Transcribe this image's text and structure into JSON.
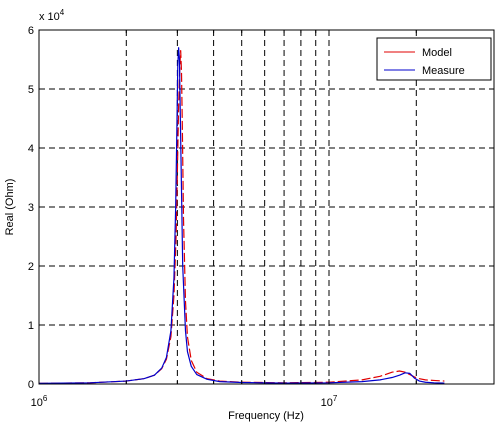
{
  "chart_data": {
    "type": "line",
    "xlabel": "Frequency (Hz)",
    "ylabel": "Real (Ohm)",
    "y_multiplier_label": "x 10",
    "y_multiplier_exp": "4",
    "x_scale": "log",
    "xlim": [
      1000000,
      25000000
    ],
    "ylim": [
      0,
      60000
    ],
    "grid": true,
    "legend_position": "top-right",
    "x_ticks": [
      {
        "base": "10",
        "exp": "6",
        "value": 1000000
      },
      {
        "base": "10",
        "exp": "7",
        "value": 10000000
      }
    ],
    "y_ticks": [
      {
        "label": "0",
        "value": 0
      },
      {
        "label": "1",
        "value": 10000
      },
      {
        "label": "2",
        "value": 20000
      },
      {
        "label": "3",
        "value": 30000
      },
      {
        "label": "4",
        "value": 40000
      },
      {
        "label": "5",
        "value": 50000
      },
      {
        "label": "6",
        "value": 60000
      }
    ],
    "series": [
      {
        "name": "Model",
        "color": "#e00000",
        "x": [
          1000000,
          1500000,
          2000000,
          2300000,
          2500000,
          2650000,
          2750000,
          2850000,
          2920000,
          2970000,
          3000000,
          3030000,
          3060000,
          3080000,
          3100000,
          3120000,
          3150000,
          3200000,
          3250000,
          3350000,
          3500000,
          3800000,
          4200000,
          5000000,
          7000000,
          10000000,
          13000000,
          15000000,
          16500000,
          17500000,
          18300000,
          19000000,
          19700000,
          20500000,
          21500000,
          23000000,
          25000000
        ],
        "y": [
          100,
          200,
          500,
          900,
          1500,
          2600,
          4200,
          8000,
          15000,
          25000,
          36000,
          47000,
          54000,
          56500,
          53000,
          44000,
          28000,
          14000,
          8000,
          4000,
          2000,
          900,
          500,
          300,
          200,
          300,
          700,
          1300,
          2000,
          2200,
          2000,
          1600,
          1200,
          900,
          700,
          600,
          500
        ]
      },
      {
        "name": "Measure",
        "color": "#0000cc",
        "x": [
          1000000,
          1500000,
          2000000,
          2300000,
          2500000,
          2650000,
          2750000,
          2850000,
          2920000,
          2960000,
          2990000,
          3010000,
          3030000,
          3050000,
          3070000,
          3100000,
          3130000,
          3200000,
          3250000,
          3350000,
          3500000,
          3800000,
          4200000,
          5000000,
          7000000,
          10000000,
          13000000,
          15000000,
          16500000,
          17500000,
          18300000,
          19000000,
          19700000,
          20500000,
          21500000,
          23000000,
          25000000
        ],
        "y": [
          100,
          200,
          500,
          900,
          1500,
          2700,
          4500,
          9000,
          18000,
          30000,
          44000,
          54000,
          57000,
          55000,
          46000,
          33000,
          20000,
          9000,
          5500,
          3000,
          1600,
          800,
          400,
          250,
          150,
          200,
          400,
          700,
          1100,
          1500,
          1900,
          1800,
          1000,
          500,
          300,
          200,
          150
        ]
      }
    ]
  }
}
